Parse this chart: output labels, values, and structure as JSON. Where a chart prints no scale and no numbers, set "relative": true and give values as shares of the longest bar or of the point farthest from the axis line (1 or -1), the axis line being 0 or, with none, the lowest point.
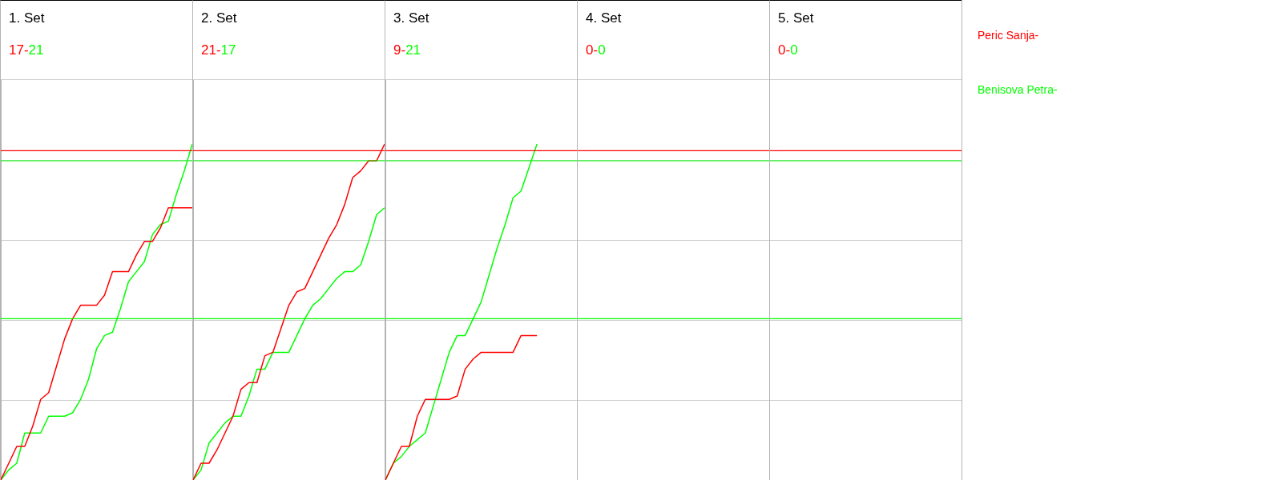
{
  "chart_data": [
    {
      "type": "line",
      "title": "1. Set",
      "annotations": [
        "17-",
        "21"
      ],
      "relative": true,
      "grid": "y",
      "legend": "right",
      "marker": "none",
      "categories": [
        null,
        null,
        null,
        null,
        null,
        null,
        null,
        null,
        null,
        null,
        null,
        null,
        null,
        null,
        null,
        null,
        null,
        null,
        null,
        null,
        null,
        null,
        null,
        null,
        null
      ],
      "ref_lines": [
        {
          "axis": "y",
          "value": 0.98,
          "color": "#ff0000"
        },
        {
          "axis": "y",
          "value": 0.95,
          "color": "#00ff00"
        },
        {
          "axis": "y",
          "value": 0.48,
          "color": "#00ff00"
        }
      ],
      "series": [
        {
          "name": "Peric Sanja-",
          "color": "#ff0000",
          "values": [
            0,
            0.05,
            0.1,
            0.1,
            0.16,
            0.24,
            0.26,
            0.34,
            0.42,
            0.48,
            0.52,
            0.52,
            0.52,
            0.55,
            0.62,
            0.62,
            0.62,
            0.67,
            0.71,
            0.71,
            0.75,
            0.81,
            0.81,
            0.81,
            0.81
          ]
        },
        {
          "name": "Benisova Petra-",
          "color": "#00ff00",
          "values": [
            0,
            0.03,
            0.05,
            0.14,
            0.14,
            0.14,
            0.19,
            0.19,
            0.19,
            0.2,
            0.24,
            0.3,
            0.39,
            0.43,
            0.44,
            0.51,
            0.59,
            0.62,
            0.65,
            0.73,
            0.76,
            0.77,
            0.85,
            0.92,
            1
          ]
        }
      ]
    },
    {
      "type": "line",
      "title": "2. Set",
      "annotations": [
        "21-",
        "17"
      ],
      "relative": true,
      "grid": "y",
      "marker": "none",
      "categories": [
        null,
        null,
        null,
        null,
        null,
        null,
        null,
        null,
        null,
        null,
        null,
        null,
        null,
        null,
        null,
        null,
        null,
        null,
        null,
        null,
        null,
        null,
        null,
        null,
        null
      ],
      "ref_lines": [
        {
          "axis": "y",
          "value": 0.98,
          "color": "#ff0000"
        },
        {
          "axis": "y",
          "value": 0.95,
          "color": "#00ff00"
        },
        {
          "axis": "y",
          "value": 0.48,
          "color": "#00ff00"
        }
      ],
      "series": [
        {
          "color": "#ff0000",
          "values": [
            0,
            0.05,
            0.05,
            0.09,
            0.14,
            0.19,
            0.27,
            0.29,
            0.29,
            0.37,
            0.38,
            0.45,
            0.52,
            0.56,
            0.57,
            0.62,
            0.67,
            0.72,
            0.76,
            0.82,
            0.9,
            0.92,
            0.95,
            0.95,
            1
          ]
        },
        {
          "color": "#00ff00",
          "values": [
            0,
            0.03,
            0.11,
            0.14,
            0.17,
            0.19,
            0.19,
            0.25,
            0.33,
            0.33,
            0.38,
            0.38,
            0.38,
            0.43,
            0.48,
            0.52,
            0.54,
            0.57,
            0.6,
            0.62,
            0.62,
            0.64,
            0.71,
            0.79,
            0.81
          ]
        }
      ]
    },
    {
      "type": "line",
      "title": "3. Set",
      "annotations": [
        "9-",
        "21"
      ],
      "relative": true,
      "grid": "y",
      "marker": "none",
      "categories": [
        null,
        null,
        null,
        null,
        null,
        null,
        null,
        null,
        null,
        null,
        null,
        null,
        null,
        null,
        null,
        null,
        null,
        null,
        null,
        null,
        null,
        null,
        null,
        null,
        null
      ],
      "ref_lines": [
        {
          "axis": "y",
          "value": 0.98,
          "color": "#ff0000"
        },
        {
          "axis": "y",
          "value": 0.95,
          "color": "#00ff00"
        },
        {
          "axis": "y",
          "value": 0.48,
          "color": "#00ff00"
        }
      ],
      "series": [
        {
          "color": "#ff0000",
          "values": [
            0,
            0.05,
            0.1,
            0.1,
            0.19,
            0.24,
            0.24,
            0.24,
            0.24,
            0.25,
            0.33,
            0.36,
            0.38,
            0.38,
            0.38,
            0.38,
            0.38,
            0.43,
            0.43,
            0.43,
            null,
            null,
            null,
            null,
            null
          ]
        },
        {
          "color": "#00ff00",
          "values": [
            0,
            0.05,
            0.07,
            0.1,
            0.12,
            0.14,
            0.22,
            0.3,
            0.38,
            0.43,
            0.43,
            0.48,
            0.53,
            0.61,
            0.69,
            0.76,
            0.84,
            0.86,
            0.93,
            1,
            null,
            null,
            null,
            null,
            null
          ]
        }
      ]
    },
    {
      "type": "other",
      "title": "4. Set",
      "annotations": [
        "0-",
        "0"
      ],
      "series": [
        {
          "color": "#ff0000"
        },
        {
          "color": "#00ff00"
        }
      ]
    },
    {
      "type": "other",
      "title": "5. Set",
      "annotations": [
        "0-",
        "0"
      ],
      "series": [
        {
          "color": "#ff0000"
        },
        {
          "color": "#00ff00"
        }
      ]
    }
  ]
}
